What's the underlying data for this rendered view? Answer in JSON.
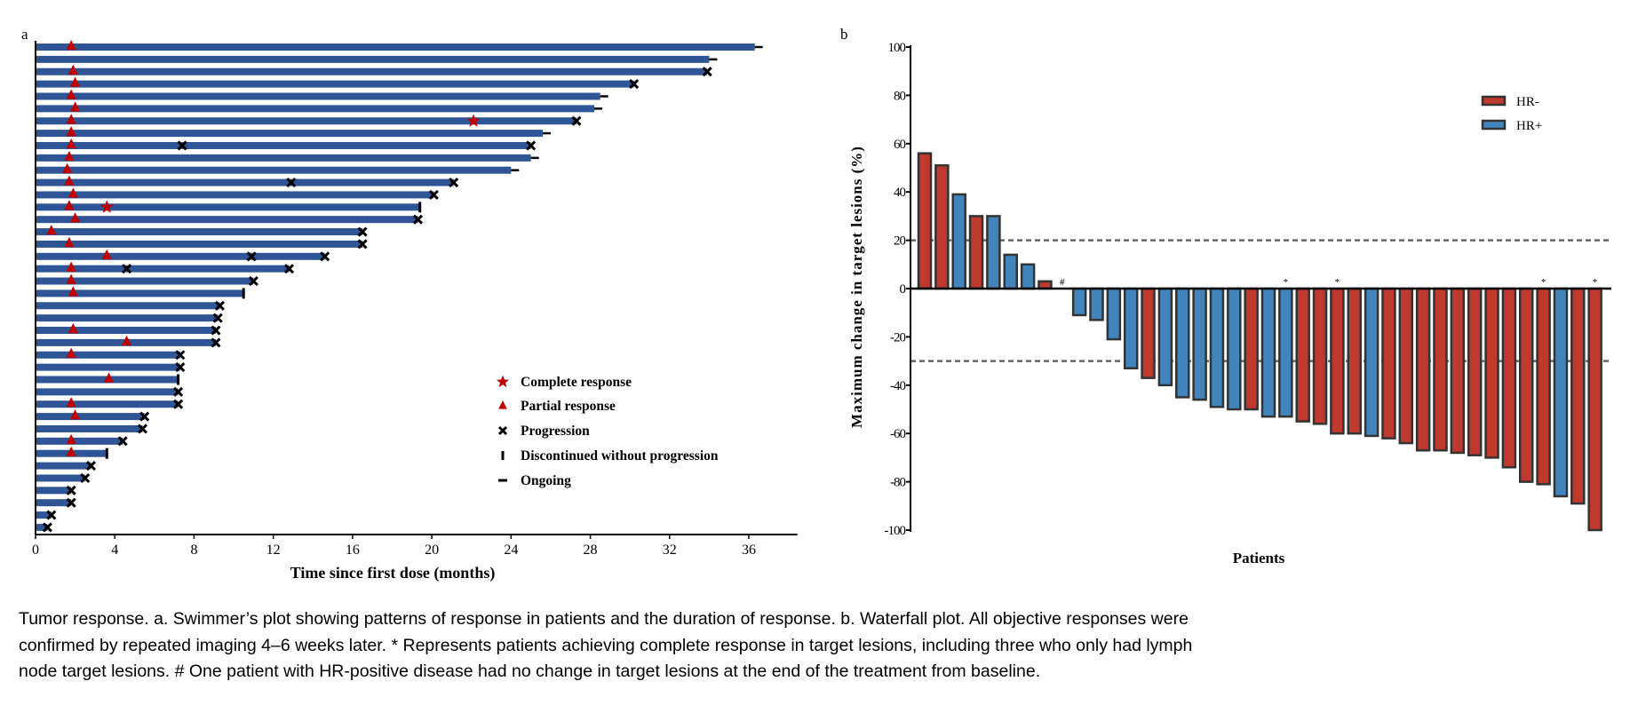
{
  "chart_data": [
    {
      "panel_label": "a",
      "type": "bar",
      "orientation": "horizontal",
      "xlabel": "Time since first dose (months)",
      "xlim": [
        0,
        38
      ],
      "xticks": [
        0,
        4,
        8,
        12,
        16,
        20,
        24,
        28,
        32,
        36
      ],
      "bar_color": "#2f5597",
      "marker_colors": {
        "complete_response": "#c00000",
        "partial_response": "#c00000",
        "progression": "#000000",
        "end_marks": "#000000"
      },
      "legend": {
        "placement": "bottom-right",
        "items": [
          {
            "key": "complete_response",
            "label": "Complete response",
            "icon": "star-icon"
          },
          {
            "key": "partial_response",
            "label": "Partial response",
            "icon": "triangle-icon"
          },
          {
            "key": "progression",
            "label": "Progression",
            "icon": "x-icon"
          },
          {
            "key": "discontinued",
            "label": "Discontinued without progression",
            "icon": "vertical-tick-icon"
          },
          {
            "key": "ongoing",
            "label": "Ongoing",
            "icon": "dash-icon"
          }
        ]
      },
      "rows": [
        {
          "end": 36.3,
          "end_event": "ongoing",
          "pr": [
            1.8
          ],
          "cr": [],
          "progression": []
        },
        {
          "end": 34.0,
          "end_event": "ongoing",
          "pr": [],
          "cr": [],
          "progression": []
        },
        {
          "end": 33.9,
          "end_event": "progression",
          "pr": [
            1.9
          ],
          "cr": [],
          "progression": []
        },
        {
          "end": 30.2,
          "end_event": "progression",
          "pr": [
            2.0
          ],
          "cr": [],
          "progression": []
        },
        {
          "end": 28.5,
          "end_event": "ongoing",
          "pr": [
            1.8
          ],
          "cr": [],
          "progression": []
        },
        {
          "end": 28.2,
          "end_event": "ongoing",
          "pr": [
            2.0
          ],
          "cr": [],
          "progression": []
        },
        {
          "end": 27.3,
          "end_event": "progression",
          "pr": [
            1.8
          ],
          "cr": [
            22.1
          ],
          "progression": []
        },
        {
          "end": 25.6,
          "end_event": "ongoing",
          "pr": [
            1.8
          ],
          "cr": [],
          "progression": []
        },
        {
          "end": 25.0,
          "end_event": "progression",
          "pr": [
            1.8
          ],
          "cr": [],
          "progression": [
            7.4
          ]
        },
        {
          "end": 25.0,
          "end_event": "ongoing",
          "pr": [
            1.7
          ],
          "cr": [],
          "progression": []
        },
        {
          "end": 24.0,
          "end_event": "ongoing",
          "pr": [
            1.6
          ],
          "cr": [],
          "progression": []
        },
        {
          "end": 21.1,
          "end_event": "progression",
          "pr": [
            1.7
          ],
          "cr": [],
          "progression": [
            12.9
          ]
        },
        {
          "end": 20.1,
          "end_event": "progression",
          "pr": [
            1.9
          ],
          "cr": [],
          "progression": []
        },
        {
          "end": 19.4,
          "end_event": "discontinued",
          "pr": [
            1.7
          ],
          "cr": [
            3.6
          ],
          "progression": []
        },
        {
          "end": 19.3,
          "end_event": "progression",
          "pr": [
            2.0
          ],
          "cr": [],
          "progression": []
        },
        {
          "end": 16.5,
          "end_event": "progression",
          "pr": [
            0.8
          ],
          "cr": [],
          "progression": []
        },
        {
          "end": 16.5,
          "end_event": "progression",
          "pr": [
            1.7
          ],
          "cr": [],
          "progression": []
        },
        {
          "end": 14.6,
          "end_event": "progression",
          "pr": [
            3.6
          ],
          "cr": [],
          "progression": [
            10.9
          ]
        },
        {
          "end": 12.8,
          "end_event": "progression",
          "pr": [
            1.8
          ],
          "cr": [],
          "progression": [
            4.6
          ]
        },
        {
          "end": 11.0,
          "end_event": "progression",
          "pr": [
            1.8
          ],
          "cr": [],
          "progression": []
        },
        {
          "end": 10.5,
          "end_event": "discontinued",
          "pr": [
            1.9
          ],
          "cr": [],
          "progression": []
        },
        {
          "end": 9.3,
          "end_event": "progression",
          "pr": [],
          "cr": [],
          "progression": []
        },
        {
          "end": 9.2,
          "end_event": "progression",
          "pr": [],
          "cr": [],
          "progression": []
        },
        {
          "end": 9.1,
          "end_event": "progression",
          "pr": [
            1.9
          ],
          "cr": [],
          "progression": []
        },
        {
          "end": 9.1,
          "end_event": "progression",
          "pr": [
            4.6
          ],
          "cr": [],
          "progression": []
        },
        {
          "end": 7.3,
          "end_event": "progression",
          "pr": [
            1.8
          ],
          "cr": [],
          "progression": []
        },
        {
          "end": 7.3,
          "end_event": "progression",
          "pr": [],
          "cr": [],
          "progression": []
        },
        {
          "end": 7.2,
          "end_event": "discontinued",
          "pr": [
            3.7
          ],
          "cr": [],
          "progression": []
        },
        {
          "end": 7.2,
          "end_event": "progression",
          "pr": [],
          "cr": [],
          "progression": []
        },
        {
          "end": 7.2,
          "end_event": "progression",
          "pr": [
            1.8
          ],
          "cr": [],
          "progression": []
        },
        {
          "end": 5.5,
          "end_event": "progression",
          "pr": [
            2.0
          ],
          "cr": [],
          "progression": []
        },
        {
          "end": 5.4,
          "end_event": "progression",
          "pr": [],
          "cr": [],
          "progression": []
        },
        {
          "end": 4.4,
          "end_event": "progression",
          "pr": [
            1.8
          ],
          "cr": [],
          "progression": []
        },
        {
          "end": 3.6,
          "end_event": "discontinued",
          "pr": [
            1.8
          ],
          "cr": [],
          "progression": []
        },
        {
          "end": 2.8,
          "end_event": "progression",
          "pr": [],
          "cr": [],
          "progression": []
        },
        {
          "end": 2.5,
          "end_event": "progression",
          "pr": [],
          "cr": [],
          "progression": []
        },
        {
          "end": 1.8,
          "end_event": "progression",
          "pr": [],
          "cr": [],
          "progression": []
        },
        {
          "end": 1.8,
          "end_event": "progression",
          "pr": [],
          "cr": [],
          "progression": []
        },
        {
          "end": 0.8,
          "end_event": "progression",
          "pr": [],
          "cr": [],
          "progression": []
        },
        {
          "end": 0.6,
          "end_event": "progression",
          "pr": [],
          "cr": [],
          "progression": []
        }
      ]
    },
    {
      "panel_label": "b",
      "type": "bar",
      "xlabel": "Patients",
      "ylabel": "Maximum change in target lesions (%)",
      "ylim": [
        -100,
        100
      ],
      "yticks": [
        100,
        80,
        60,
        40,
        20,
        0,
        -20,
        -40,
        -60,
        -80,
        -100
      ],
      "reference_lines": [
        20,
        -30
      ],
      "colors": {
        "HR-": "#c0392f",
        "HR+": "#4285bd",
        "outline": "#333333",
        "reference": "#666666"
      },
      "legend": {
        "placement": "top-right",
        "items": [
          {
            "key": "HR-",
            "label": "HR-"
          },
          {
            "key": "HR+",
            "label": "HR+"
          }
        ]
      },
      "bars": [
        {
          "value": 56,
          "group": "HR-"
        },
        {
          "value": 51,
          "group": "HR-"
        },
        {
          "value": 39,
          "group": "HR+"
        },
        {
          "value": 30,
          "group": "HR-"
        },
        {
          "value": 30,
          "group": "HR+"
        },
        {
          "value": 14,
          "group": "HR+"
        },
        {
          "value": 10,
          "group": "HR+"
        },
        {
          "value": 3,
          "group": "HR-"
        },
        {
          "value": 0,
          "group": "HR+",
          "annotation": "#"
        },
        {
          "value": -11,
          "group": "HR+"
        },
        {
          "value": -13,
          "group": "HR+"
        },
        {
          "value": -21,
          "group": "HR+"
        },
        {
          "value": -33,
          "group": "HR+"
        },
        {
          "value": -37,
          "group": "HR-"
        },
        {
          "value": -40,
          "group": "HR+"
        },
        {
          "value": -45,
          "group": "HR+"
        },
        {
          "value": -46,
          "group": "HR+"
        },
        {
          "value": -49,
          "group": "HR+"
        },
        {
          "value": -50,
          "group": "HR+"
        },
        {
          "value": -50,
          "group": "HR-"
        },
        {
          "value": -53,
          "group": "HR+"
        },
        {
          "value": -53,
          "group": "HR+",
          "annotation": "*"
        },
        {
          "value": -55,
          "group": "HR-"
        },
        {
          "value": -56,
          "group": "HR-"
        },
        {
          "value": -60,
          "group": "HR-",
          "annotation": "*"
        },
        {
          "value": -60,
          "group": "HR-"
        },
        {
          "value": -61,
          "group": "HR+"
        },
        {
          "value": -62,
          "group": "HR-"
        },
        {
          "value": -64,
          "group": "HR-"
        },
        {
          "value": -67,
          "group": "HR-"
        },
        {
          "value": -67,
          "group": "HR-"
        },
        {
          "value": -68,
          "group": "HR-"
        },
        {
          "value": -69,
          "group": "HR-"
        },
        {
          "value": -70,
          "group": "HR-"
        },
        {
          "value": -74,
          "group": "HR-"
        },
        {
          "value": -80,
          "group": "HR-"
        },
        {
          "value": -81,
          "group": "HR-",
          "annotation": "*"
        },
        {
          "value": -86,
          "group": "HR+"
        },
        {
          "value": -89,
          "group": "HR-"
        },
        {
          "value": -100,
          "group": "HR-",
          "annotation": "*"
        }
      ]
    }
  ],
  "caption": {
    "lines": [
      "Tumor response. a. Swimmer’s plot showing patterns of response in patients and the duration of response. b. Waterfall plot. All objective responses were",
      "confirmed by repeated imaging 4–6 weeks later. * Represents patients achieving complete response in target lesions, including three who only had lymph",
      "node target lesions. # One patient with HR-positive disease had no change in target lesions at the end of the treatment from baseline."
    ]
  }
}
